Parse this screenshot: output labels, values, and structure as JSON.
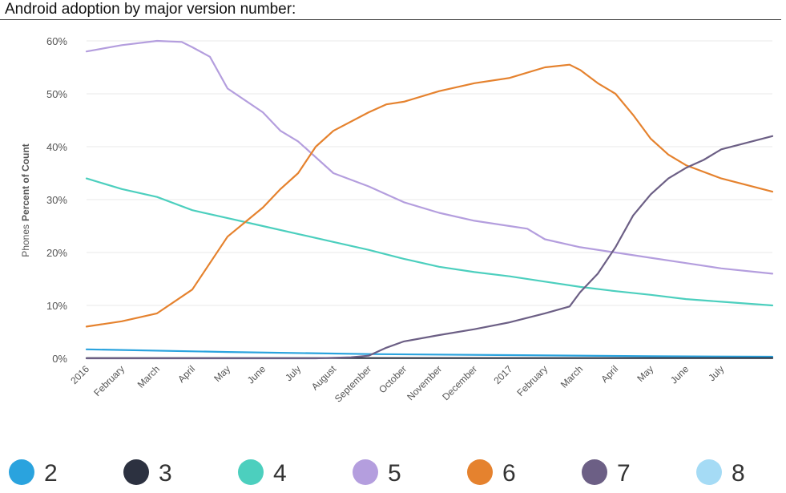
{
  "title": "Android adoption by major version number:",
  "colors": {
    "2": "#2aa3de",
    "3": "#2c3140",
    "4": "#4ccfbe",
    "5": "#b49ede",
    "6": "#e5822e",
    "7": "#6c5f85",
    "8": "#a5dbf5",
    "grid": "#e8e8e8",
    "axis": "#bbbbbb"
  },
  "chart_data": {
    "type": "line",
    "title": "Android adoption by major version number:",
    "ylabel_prefix": "Phones",
    "ylabel_bold": "Percent of Count",
    "ylim": [
      0,
      60
    ],
    "yticks": [
      0,
      10,
      20,
      30,
      40,
      50,
      60
    ],
    "ytick_labels": [
      "0%",
      "10%",
      "20%",
      "30%",
      "40%",
      "50%",
      "60%"
    ],
    "x_tick_labels": [
      "2016",
      "February",
      "March",
      "April",
      "May",
      "June",
      "July",
      "August",
      "September",
      "October",
      "November",
      "December",
      "2017",
      "February",
      "March",
      "April",
      "May",
      "June",
      "July"
    ],
    "x_month_index": [
      0,
      1,
      2,
      3,
      4,
      5,
      6,
      7,
      8,
      9,
      10,
      11,
      12,
      13,
      14,
      15,
      16,
      17,
      18
    ],
    "xlim": [
      0,
      19.45
    ],
    "grid": true,
    "legend": "bottom",
    "series": [
      {
        "name": "2",
        "x": [
          0,
          4,
          8,
          12,
          16,
          19.45
        ],
        "y": [
          1.7,
          1.2,
          0.8,
          0.6,
          0.4,
          0.3
        ]
      },
      {
        "name": "3",
        "x": [
          0,
          19.45
        ],
        "y": [
          0.05,
          0.05
        ]
      },
      {
        "name": "4",
        "x": [
          0,
          1,
          2,
          3,
          4,
          5,
          6,
          7,
          8,
          9,
          10,
          11,
          12,
          13,
          14,
          15,
          16,
          17,
          18,
          19.45
        ],
        "y": [
          34,
          32,
          30.5,
          28,
          26.5,
          25,
          23.5,
          22,
          20.5,
          18.8,
          17.3,
          16.3,
          15.5,
          14.5,
          13.5,
          12.7,
          12,
          11.2,
          10.7,
          10
        ]
      },
      {
        "name": "5",
        "x": [
          0,
          1,
          2,
          2.7,
          3,
          3.5,
          4,
          5,
          5.5,
          6,
          7,
          8,
          9,
          10,
          11,
          12,
          12.5,
          13,
          14,
          15,
          16,
          17,
          18,
          19.45
        ],
        "y": [
          58,
          59.2,
          60,
          59.8,
          58.8,
          57,
          51,
          46.5,
          43,
          41,
          35,
          32.5,
          29.5,
          27.5,
          26,
          25,
          24.5,
          22.5,
          21,
          20,
          19,
          18,
          17,
          16
        ]
      },
      {
        "name": "6",
        "x": [
          0,
          1,
          2,
          3,
          3.5,
          4,
          5,
          5.5,
          6,
          6.5,
          7,
          8,
          8.5,
          9,
          10,
          11,
          12,
          13,
          13.7,
          14,
          14.5,
          15,
          15.5,
          16,
          16.5,
          17,
          18,
          19.45
        ],
        "y": [
          6,
          7,
          8.5,
          13,
          18,
          23,
          28.5,
          32,
          35,
          40,
          43,
          46.5,
          48,
          48.5,
          50.5,
          52,
          53,
          55,
          55.5,
          54.5,
          52,
          50,
          46,
          41.5,
          38.5,
          36.5,
          34,
          31.5
        ]
      },
      {
        "name": "7",
        "x": [
          0,
          6.5,
          7.5,
          8,
          8.5,
          9,
          10,
          11,
          12,
          13,
          13.7,
          14,
          14.5,
          15,
          15.5,
          16,
          16.5,
          17,
          17.5,
          18,
          19.45
        ],
        "y": [
          0,
          0,
          0.2,
          0.5,
          2,
          3.2,
          4.4,
          5.5,
          6.8,
          8.5,
          9.8,
          12.5,
          16,
          21,
          27,
          31,
          34,
          36,
          37.5,
          39.5,
          42
        ]
      },
      {
        "name": "8",
        "x": [
          0,
          19.45
        ],
        "y": [
          0,
          0
        ]
      }
    ]
  }
}
